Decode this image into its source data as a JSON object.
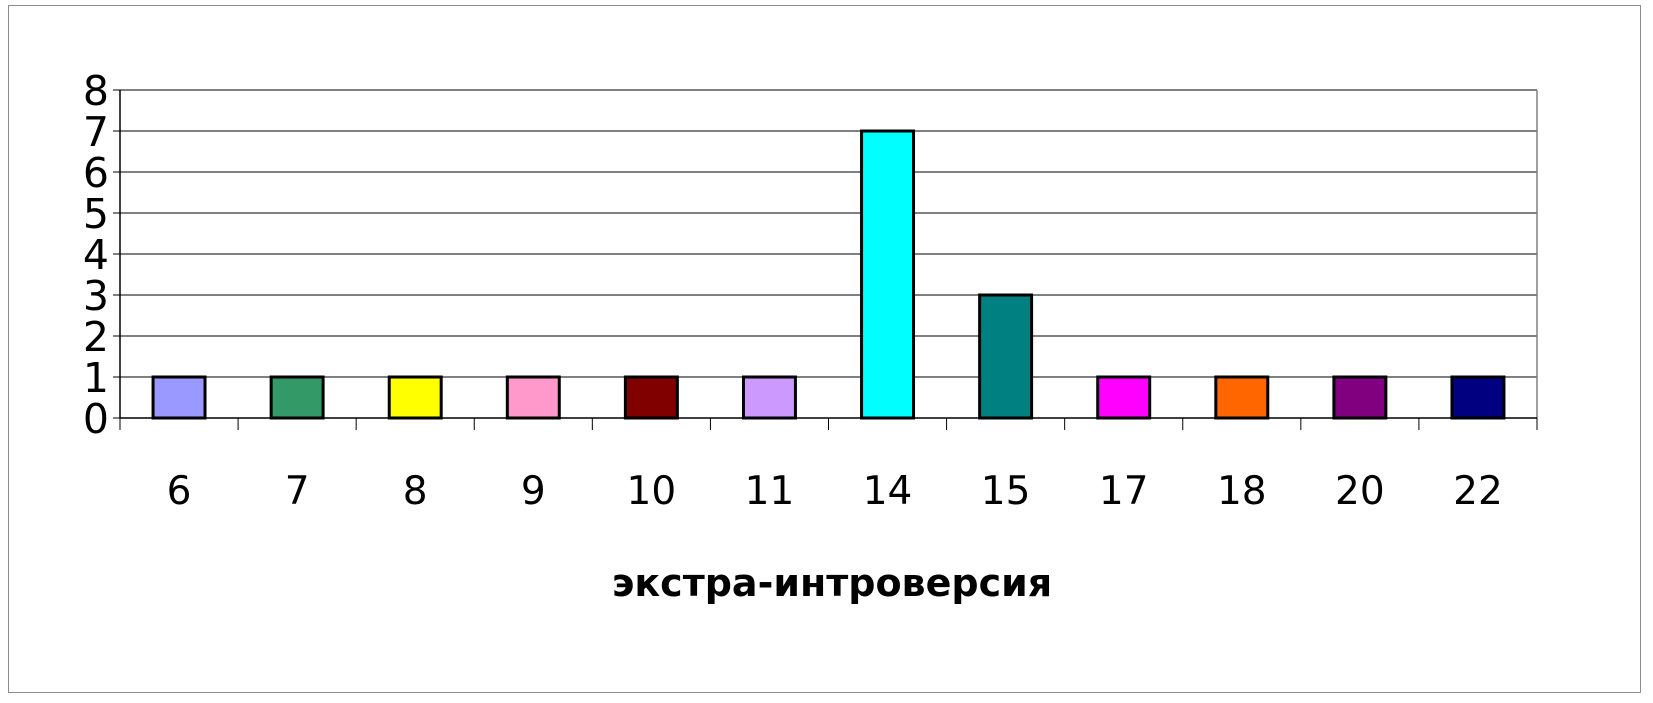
{
  "chart_data": {
    "type": "bar",
    "title": "",
    "xlabel": "экстра-интроверсия",
    "ylabel": "",
    "ylim": [
      0,
      8
    ],
    "yticks": [
      "0",
      "1",
      "2",
      "3",
      "4",
      "5",
      "6",
      "7",
      "8"
    ],
    "grid": true,
    "legend": "none",
    "categories": [
      "6",
      "7",
      "8",
      "9",
      "10",
      "11",
      "14",
      "15",
      "17",
      "18",
      "20",
      "22"
    ],
    "values": [
      1,
      1,
      1,
      1,
      1,
      1,
      7,
      3,
      1,
      1,
      1,
      1
    ],
    "colors": [
      "#9999ff",
      "#339966",
      "#ffff00",
      "#ff99cc",
      "#800000",
      "#cc99ff",
      "#00ffff",
      "#008080",
      "#ff00ff",
      "#ff6600",
      "#800080",
      "#000080"
    ]
  }
}
